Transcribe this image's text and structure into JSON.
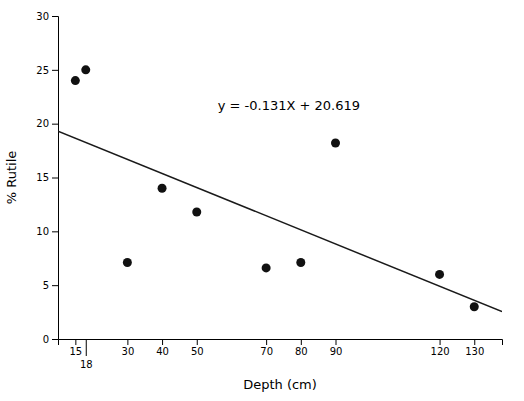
{
  "chart_data": {
    "type": "scatter",
    "xlabel": "Depth (cm)",
    "ylabel": "% Rutile",
    "series": [
      {
        "type": "line",
        "color": "#1a1a1a",
        "x": [
          10,
          138
        ],
        "values": [
          19.309,
          2.541
        ]
      },
      {
        "type": "scatter",
        "color": "#111111",
        "x": [
          15,
          18,
          30,
          40,
          50,
          70,
          80,
          90,
          120,
          130
        ],
        "values": [
          24.0,
          25.0,
          7.1,
          14.0,
          11.8,
          6.6,
          7.1,
          18.2,
          6.0,
          3.0
        ]
      }
    ],
    "annotations": [
      {
        "text": "y = -0.131X + 20.619"
      }
    ],
    "xlim": [
      10,
      138
    ],
    "ylim": [
      0,
      30
    ],
    "xticks": [
      15,
      18,
      30,
      40,
      50,
      70,
      80,
      90,
      120,
      130
    ],
    "yticks": [
      0,
      5,
      10,
      15,
      20,
      25,
      30
    ]
  }
}
